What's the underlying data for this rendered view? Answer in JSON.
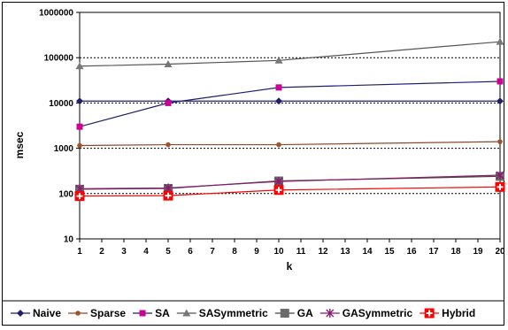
{
  "chart_data": {
    "type": "line",
    "xlabel": "k",
    "ylabel": "msec",
    "y_scale": "log",
    "ylim": [
      10,
      1000000
    ],
    "xlim": [
      1,
      20
    ],
    "x_ticks": [
      "1",
      "2",
      "3",
      "4",
      "5",
      "6",
      "7",
      "8",
      "9",
      "10",
      "11",
      "12",
      "13",
      "14",
      "15",
      "16",
      "17",
      "18",
      "19",
      "20"
    ],
    "y_ticks": [
      "10",
      "100",
      "1000",
      "10000",
      "100000",
      "1000000"
    ],
    "grid": "horizontal dotted",
    "legend_position": "bottom",
    "x": [
      1,
      5,
      10,
      20
    ],
    "series": [
      {
        "name": "Naive",
        "values": [
          11000,
          11000,
          11000,
          11000
        ],
        "color": "#1f1f6e",
        "marker": "diamond"
      },
      {
        "name": "Sparse",
        "values": [
          1150,
          1200,
          1200,
          1400
        ],
        "color": "#8b4a2a",
        "marker": "circle"
      },
      {
        "name": "SA",
        "values": [
          3000,
          10000,
          22000,
          30000
        ],
        "color": "#1f1f6e",
        "marker": "square-magenta"
      },
      {
        "name": "SASymmetric",
        "values": [
          65000,
          72000,
          87000,
          225000
        ],
        "color": "#555555",
        "marker": "triangle"
      },
      {
        "name": "GA",
        "values": [
          125,
          130,
          190,
          240
        ],
        "color": "#444444",
        "marker": "square-gray"
      },
      {
        "name": "GASymmetric",
        "values": [
          128,
          133,
          185,
          255
        ],
        "color": "#8b1a6e",
        "marker": "star"
      },
      {
        "name": "Hybrid",
        "values": [
          88,
          90,
          120,
          140
        ],
        "color": "#ff0000",
        "marker": "cross"
      }
    ]
  }
}
